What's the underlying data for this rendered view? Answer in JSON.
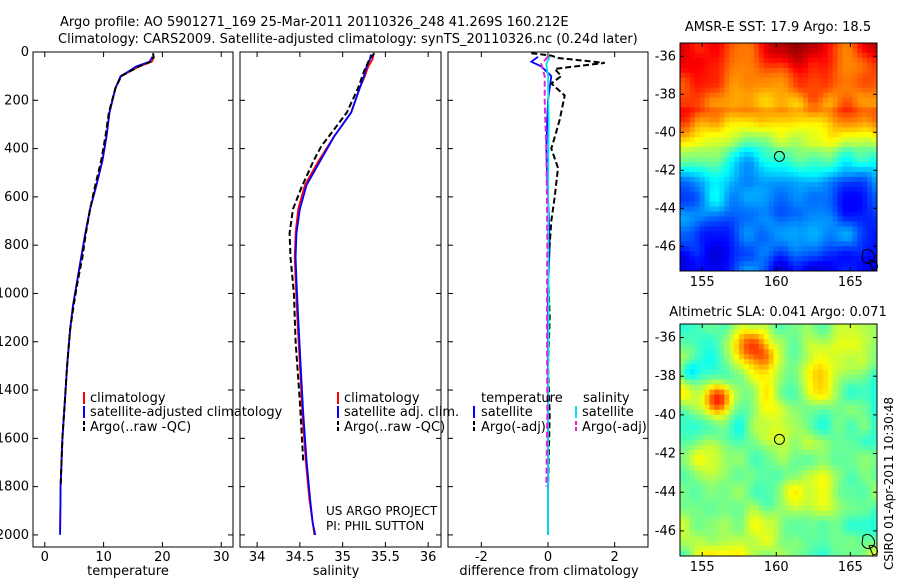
{
  "header": {
    "line1": "Argo profile: AO 5901271_169 25-Mar-2011 20110326_248 41.269S 160.212E",
    "line2": "Climatology: CARS2009. Satellite-adjusted climatology: synTS_20110326.nc (0.24d later)"
  },
  "side_text": "CSIRO 01-Apr-2011 10:30:48",
  "project_text": [
    "US ARGO PROJECT",
    "PI: PHIL SUTTON"
  ],
  "colors": {
    "climatology": "#ff0000",
    "satellite": "#0000ff",
    "argo": "#000000",
    "sal_satellite": "#00e5ee",
    "sal_argo": "#e020e0"
  },
  "chart_data": [
    {
      "type": "line",
      "id": "temperature",
      "xlabel": "temperature",
      "ylabel": "",
      "xlim": [
        -2,
        32
      ],
      "ylim": [
        2050,
        0
      ],
      "xticks": [
        0,
        10,
        20,
        30
      ],
      "yticks": [
        0,
        200,
        400,
        600,
        800,
        1000,
        1200,
        1400,
        1600,
        1800,
        2000
      ],
      "legend": [
        "climatology",
        "satellite-adjusted climatology",
        "Argo(..raw -QC)"
      ],
      "series": [
        {
          "name": "climatology",
          "style": "solid",
          "color": "#ff0000",
          "x": [
            18.6,
            18.2,
            16.0,
            14.5,
            13.0,
            12.0,
            11.0,
            10.5,
            9.8,
            8.8,
            7.7,
            6.9,
            6.2,
            5.5,
            4.8,
            4.3,
            3.8,
            3.4,
            3.0,
            2.7,
            2.6
          ],
          "y": [
            20,
            40,
            60,
            80,
            100,
            150,
            250,
            350,
            450,
            550,
            650,
            750,
            850,
            950,
            1050,
            1150,
            1300,
            1450,
            1600,
            1800,
            1990
          ]
        },
        {
          "name": "satellite-adjusted climatology",
          "style": "solid",
          "color": "#0000ff",
          "x": [
            18.3,
            17.8,
            15.5,
            14.3,
            12.9,
            12.0,
            11.0,
            10.5,
            9.8,
            8.8,
            7.7,
            6.9,
            6.2,
            5.5,
            4.8,
            4.3,
            3.8,
            3.4,
            3.0,
            2.7,
            2.6
          ],
          "y": [
            20,
            40,
            60,
            80,
            100,
            150,
            250,
            350,
            450,
            550,
            650,
            750,
            850,
            950,
            1050,
            1150,
            1300,
            1450,
            1600,
            1800,
            2000
          ]
        },
        {
          "name": "Argo(..raw -QC)",
          "style": "dashed",
          "color": "#000000",
          "x": [
            18.4,
            18.5,
            18.0,
            16.0,
            14.5,
            13.0,
            12.0,
            10.9,
            10.3,
            9.6,
            8.6,
            7.7,
            7.0,
            6.4,
            5.6,
            4.9,
            4.3,
            3.8,
            3.4,
            3.0,
            2.7
          ],
          "y": [
            5,
            20,
            40,
            60,
            80,
            100,
            150,
            250,
            350,
            450,
            550,
            650,
            750,
            850,
            950,
            1050,
            1150,
            1300,
            1450,
            1600,
            1800
          ]
        }
      ]
    },
    {
      "type": "line",
      "id": "salinity",
      "xlabel": "salinity",
      "ylabel": "",
      "xlim": [
        33.8,
        36.15
      ],
      "ylim": [
        2050,
        0
      ],
      "xticks": [
        34,
        34.5,
        35,
        35.5,
        36
      ],
      "xticklabels": [
        "34",
        "34.5",
        "35",
        "35.5",
        "36"
      ],
      "legend": [
        "climatology",
        "satellite adj. clim.",
        "Argo(..raw -QC)"
      ],
      "series": [
        {
          "name": "climatology",
          "style": "solid",
          "color": "#ff0000",
          "x": [
            35.36,
            35.35,
            35.3,
            35.26,
            35.2,
            35.1,
            34.9,
            34.72,
            34.56,
            34.48,
            34.45,
            34.44,
            34.45,
            34.47,
            34.5,
            34.53,
            34.57,
            34.61,
            34.65,
            34.67
          ],
          "y": [
            10,
            30,
            60,
            100,
            150,
            250,
            350,
            450,
            550,
            650,
            750,
            850,
            950,
            1100,
            1300,
            1500,
            1700,
            1850,
            1950,
            2000
          ]
        },
        {
          "name": "satellite adj. clim.",
          "style": "solid",
          "color": "#0000ff",
          "x": [
            35.33,
            35.32,
            35.28,
            35.25,
            35.2,
            35.1,
            34.9,
            34.74,
            34.58,
            34.5,
            34.46,
            34.45,
            34.46,
            34.48,
            34.51,
            34.54,
            34.58,
            34.62,
            34.65,
            34.68
          ],
          "y": [
            10,
            30,
            60,
            100,
            150,
            250,
            350,
            450,
            550,
            650,
            750,
            850,
            950,
            1100,
            1300,
            1500,
            1700,
            1850,
            1950,
            2000
          ]
        },
        {
          "name": "Argo(..raw -QC)",
          "style": "dashed",
          "color": "#000000",
          "x": [
            35.37,
            35.3,
            35.25,
            35.22,
            35.18,
            35.05,
            34.88,
            34.75,
            34.66,
            34.52,
            34.42,
            34.38,
            34.39,
            34.43,
            34.45,
            34.5,
            34.54
          ],
          "y": [
            5,
            40,
            80,
            110,
            150,
            250,
            330,
            390,
            450,
            560,
            650,
            750,
            850,
            1000,
            1200,
            1450,
            1700
          ]
        }
      ]
    },
    {
      "type": "line",
      "id": "difference",
      "xlabel": "difference from climatology",
      "ylabel": "",
      "xlim": [
        -3,
        3
      ],
      "ylim": [
        2050,
        0
      ],
      "xticks": [
        -2,
        0,
        2
      ],
      "legend_headers": [
        "temperature",
        "salinity"
      ],
      "legend": [
        "satellite",
        "Argo(-adj)",
        "satellite",
        "Argo(-adj)"
      ],
      "series": [
        {
          "name": "satellite",
          "group": "temperature",
          "style": "solid",
          "color": "#0000ff",
          "x": [
            -0.3,
            -0.5,
            -0.2,
            0.1,
            0.0,
            -0.05,
            0.0,
            0.05,
            0.0,
            0.0,
            0.0
          ],
          "y": [
            20,
            40,
            60,
            100,
            200,
            400,
            600,
            800,
            1000,
            1500,
            2000
          ]
        },
        {
          "name": "Argo(-adj)",
          "group": "temperature",
          "style": "dashed",
          "color": "#000000",
          "x": [
            -0.5,
            0.1,
            0.3,
            1.7,
            0.2,
            0.4,
            0.1,
            0.5,
            0.35,
            0.25,
            0.1,
            0.3,
            0.2,
            0.1,
            0.0,
            0.05,
            0.0,
            0.05,
            0.0
          ],
          "y": [
            5,
            15,
            25,
            45,
            70,
            100,
            130,
            180,
            280,
            330,
            400,
            480,
            600,
            700,
            900,
            1100,
            1300,
            1500,
            1800
          ]
        },
        {
          "name": "satellite",
          "group": "salinity",
          "style": "solid",
          "color": "#00e5ee",
          "x": [
            0.05,
            -0.05,
            0.0,
            0.02,
            0.0,
            0.02,
            0.0,
            0.0
          ],
          "y": [
            20,
            50,
            100,
            300,
            600,
            1000,
            1500,
            2000
          ]
        },
        {
          "name": "Argo(-adj)",
          "group": "salinity",
          "style": "dashed",
          "color": "#e020e0",
          "x": [
            0.0,
            -0.2,
            -0.1,
            -0.1,
            -0.05,
            -0.03,
            -0.02,
            -0.03,
            -0.02,
            -0.05
          ],
          "y": [
            20,
            50,
            100,
            200,
            400,
            600,
            800,
            1100,
            1500,
            1800
          ]
        }
      ]
    },
    {
      "type": "heatmap",
      "id": "sst_map",
      "title": "AMSR-E SST: 17.9 Argo: 18.5",
      "xlim": [
        153.5,
        166.8
      ],
      "ylim": [
        -47.3,
        -35.3
      ],
      "xticks": [
        155,
        160,
        165
      ],
      "yticks": [
        -36,
        -38,
        -40,
        -42,
        -44,
        -46
      ],
      "marker": {
        "lon": 160.212,
        "lat": -41.269
      }
    },
    {
      "type": "heatmap",
      "id": "sla_map",
      "title": "Altimetric SLA: 0.041 Argo: 0.071",
      "xlim": [
        153.5,
        166.8
      ],
      "ylim": [
        -47.3,
        -35.3
      ],
      "xticks": [
        155,
        160,
        165
      ],
      "yticks": [
        -36,
        -38,
        -40,
        -42,
        -44,
        -46
      ],
      "marker": {
        "lon": 160.212,
        "lat": -41.269
      }
    }
  ]
}
